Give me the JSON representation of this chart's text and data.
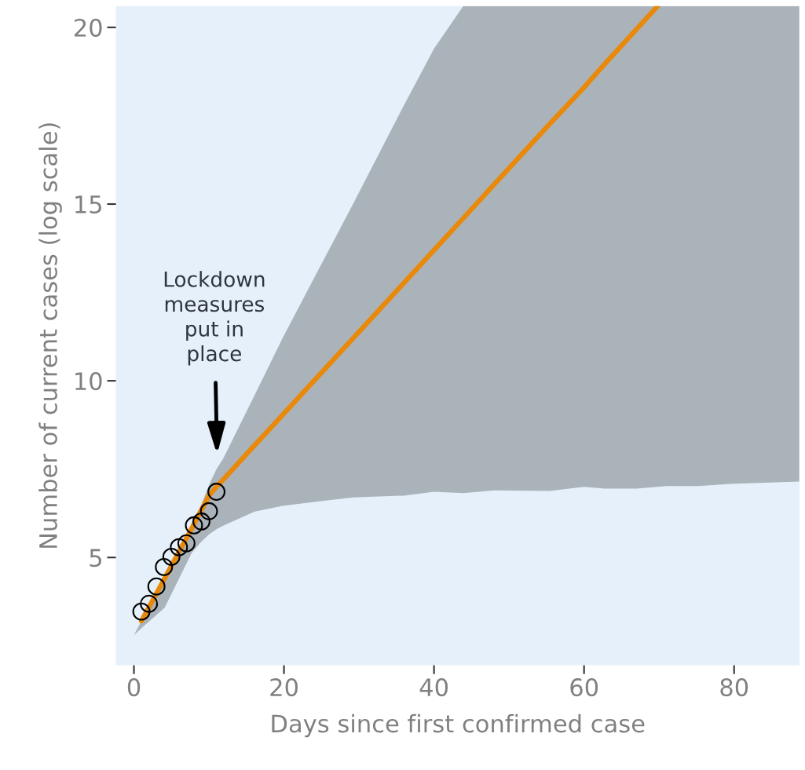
{
  "chart_data": {
    "type": "line",
    "xlabel": "Days since first confirmed case",
    "ylabel": "Number of current cases (log scale)",
    "xlim": [
      -2.4,
      88.7
    ],
    "ylim": [
      1.95,
      20.6
    ],
    "xticks": [
      0,
      20,
      40,
      60,
      80
    ],
    "yticks": [
      5,
      10,
      15,
      20
    ],
    "grid": false,
    "series": [
      {
        "color": "#e8890c",
        "marker": "none",
        "line_style": "solid",
        "x": [
          0,
          1,
          4.1,
          7.7,
          9,
          10,
          11,
          11.9,
          16.1,
          19.8,
          24,
          29.2,
          36,
          40,
          43.9,
          48,
          55.4,
          60,
          62.7,
          67,
          69.8,
          71,
          75.3,
          79.5,
          88.7
        ],
        "values": [
          null,
          3.2,
          4.41,
          5.82,
          6.35,
          6.75,
          7.0,
          7.2,
          8.18,
          9.03,
          10.0,
          11.2,
          12.77,
          13.7,
          14.6,
          15.55,
          17.26,
          18.3,
          18.95,
          19.95,
          20.6,
          null,
          null,
          null,
          null
        ],
        "lower": [
          2.8,
          3.0,
          3.58,
          5.13,
          5.45,
          5.65,
          5.8,
          5.9,
          6.3,
          6.46,
          6.57,
          6.7,
          6.75,
          6.86,
          6.82,
          6.9,
          6.88,
          7.0,
          6.95,
          6.95,
          7.0,
          7.02,
          7.02,
          7.08,
          7.15
        ],
        "upper": [
          2.8,
          3.2,
          4.45,
          5.95,
          6.5,
          7.05,
          7.5,
          7.8,
          9.6,
          11.2,
          12.9,
          15.0,
          17.8,
          19.4,
          20.6,
          20.6,
          20.6,
          20.6,
          20.6,
          20.6,
          20.6,
          20.6,
          20.6,
          20.6,
          20.6
        ]
      },
      {
        "type": "scatter",
        "color": "#000000",
        "marker": "circle",
        "x": [
          1,
          2,
          3,
          4,
          5,
          6,
          7,
          8,
          9,
          10,
          11
        ],
        "values": [
          3.47,
          3.69,
          4.18,
          4.73,
          5.02,
          5.29,
          5.4,
          5.91,
          6.02,
          6.31,
          6.86
        ]
      }
    ],
    "annotations": [
      "Lockdown\nmeasures\nput in\nplace"
    ]
  }
}
